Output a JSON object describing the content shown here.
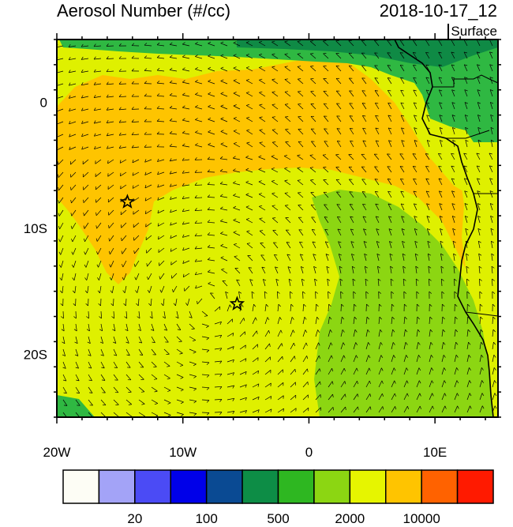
{
  "header": {
    "title": "Aerosol Number (#/cc)",
    "datetime": "2018-10-17_12",
    "level": "Surface"
  },
  "map": {
    "lon_range": [
      -20,
      15
    ],
    "lat_range": [
      -25,
      5
    ],
    "x_ticks": [
      {
        "value": -20,
        "label": "20W"
      },
      {
        "value": -10,
        "label": "10W"
      },
      {
        "value": 0,
        "label": "0"
      },
      {
        "value": 10,
        "label": "10E"
      }
    ],
    "y_ticks": [
      {
        "value": 0,
        "label": "0"
      },
      {
        "value": -10,
        "label": "10S"
      },
      {
        "value": -20,
        "label": "20S"
      }
    ],
    "markers": [
      {
        "type": "star",
        "lon": -14.4,
        "lat": -7.9
      },
      {
        "type": "star",
        "lon": -5.7,
        "lat": -16.0
      }
    ],
    "fill_colors": {
      "land_green": "#2fb842",
      "land_dark": "#0f8a45",
      "ocean_yellow_green": "#dff000",
      "ocean_orange": "#fec400",
      "ocean_green": "#8cd612",
      "bright_yellow": "#f5f500"
    }
  },
  "colorbar": {
    "colors": [
      "#fdfdf5",
      "#a3a3f7",
      "#4b4bf5",
      "#0000e9",
      "#0a4a93",
      "#0d8d46",
      "#2eb721",
      "#8cd612",
      "#e6f500",
      "#ffc400",
      "#ff6200",
      "#ff1a00"
    ],
    "labels": [
      {
        "label": "20",
        "index": 2
      },
      {
        "label": "100",
        "index": 4
      },
      {
        "label": "500",
        "index": 6
      },
      {
        "label": "2000",
        "index": 8
      },
      {
        "label": "10000",
        "index": 10
      }
    ]
  }
}
